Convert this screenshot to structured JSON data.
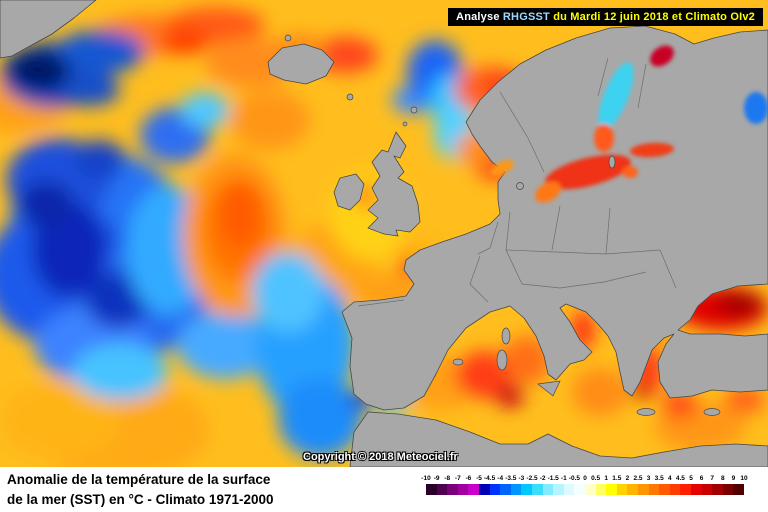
{
  "banner": {
    "parts": [
      {
        "text": "Analyse ",
        "color": "#ffffff"
      },
      {
        "text": "RHGSST",
        "color": "#9fd8ff"
      },
      {
        "text": " du Mardi 12 juin 2018 et Climato OIv2",
        "color": "#ffff00"
      }
    ]
  },
  "map": {
    "copyright": "Copyright © 2018 Meteociel.fr",
    "region": "North Atlantic and Europe sea surface temperature anomaly",
    "land_color": "#a8a8a8"
  },
  "caption": {
    "line1": "Anomalie de la température de la surface",
    "line2": "de la mer (SST) en °C - Climato 1971-2000"
  },
  "scale": {
    "unit": "°C",
    "boundaries": [
      "-10",
      "-9",
      "-8",
      "-7",
      "-6",
      "-5",
      "-4.5",
      "-4",
      "-3.5",
      "-3",
      "-2.5",
      "-2",
      "-1.5",
      "-1",
      "-0.5",
      "0",
      "0.5",
      "1",
      "1.5",
      "2",
      "2.5",
      "3",
      "3.5",
      "4",
      "4.5",
      "5",
      "6",
      "7",
      "8",
      "9",
      "10"
    ],
    "segments": [
      "#280028",
      "#500050",
      "#780078",
      "#a000a0",
      "#c800c8",
      "#0000b4",
      "#0032ff",
      "#0064ff",
      "#0096ff",
      "#00c8ff",
      "#3cdcff",
      "#82ebff",
      "#b4f5ff",
      "#dcfaff",
      "#f5ffff",
      "#ffffc8",
      "#ffff64",
      "#ffff00",
      "#ffd200",
      "#ffb400",
      "#ff9600",
      "#ff7800",
      "#ff5a00",
      "#ff3c00",
      "#ff1e00",
      "#e60000",
      "#c80000",
      "#a00000",
      "#780000",
      "#500000"
    ]
  }
}
